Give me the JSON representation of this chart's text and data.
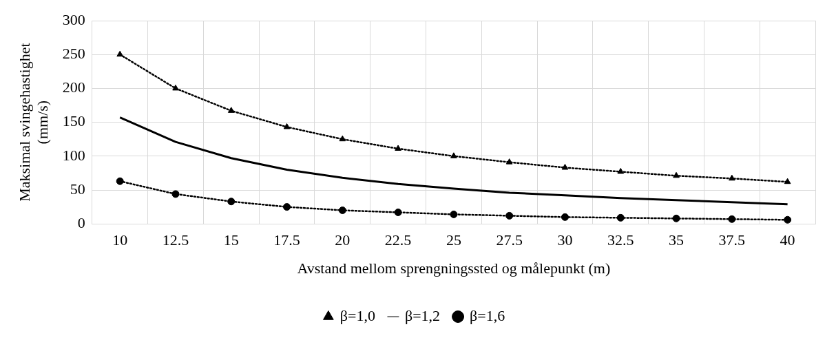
{
  "chart_data": {
    "type": "line",
    "xlabel": "Avstand mellom sprengningssted og målepunkt (m)",
    "ylabel": "Maksimal svingehastighet (mm/s)",
    "categories": [
      "10",
      "12.5",
      "15",
      "17.5",
      "20",
      "22.5",
      "25",
      "27.5",
      "30",
      "32.5",
      "35",
      "37.5",
      "40"
    ],
    "series": [
      {
        "name": "β=1,0",
        "color": "#000000",
        "marker": "triangle",
        "line_style": "dotted",
        "values": [
          250,
          200,
          167,
          143,
          125,
          111,
          100,
          91,
          83,
          77,
          71,
          67,
          62
        ]
      },
      {
        "name": "β=1,2",
        "color": "#000000",
        "marker": "none",
        "line_style": "solid",
        "values": [
          157,
          121,
          97,
          80,
          68,
          59,
          52,
          46,
          42,
          38,
          35,
          32,
          29
        ]
      },
      {
        "name": "β=1,6",
        "color": "#000000",
        "marker": "circle",
        "line_style": "dotted",
        "values": [
          63,
          44,
          33,
          25,
          20,
          17,
          14,
          12,
          10,
          9,
          8,
          7,
          6
        ]
      }
    ],
    "ylim": [
      0,
      300
    ],
    "yticks": [
      0,
      50,
      100,
      150,
      200,
      250,
      300
    ],
    "grid": true,
    "legend": "bottom"
  }
}
